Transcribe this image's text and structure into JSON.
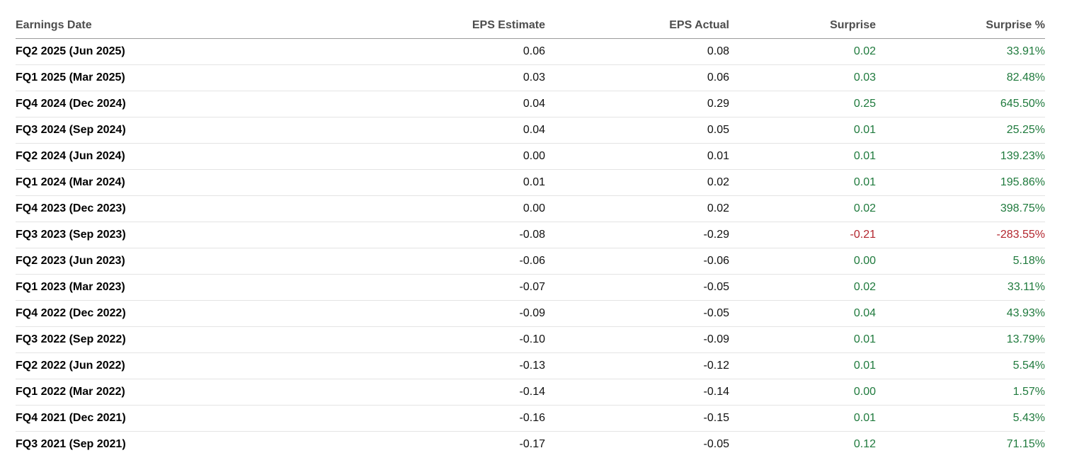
{
  "table": {
    "headers": {
      "date": "Earnings Date",
      "estimate": "EPS Estimate",
      "actual": "EPS Actual",
      "surprise": "Surprise",
      "surprise_pct": "Surprise %"
    },
    "colors": {
      "positive": "#1f7a3d",
      "negative": "#b3262e"
    },
    "rows": [
      {
        "date": "FQ2 2025 (Jun 2025)",
        "estimate": "0.06",
        "actual": "0.08",
        "surprise": "0.02",
        "surprise_pct": "33.91%",
        "direction": "positive"
      },
      {
        "date": "FQ1 2025 (Mar 2025)",
        "estimate": "0.03",
        "actual": "0.06",
        "surprise": "0.03",
        "surprise_pct": "82.48%",
        "direction": "positive"
      },
      {
        "date": "FQ4 2024 (Dec 2024)",
        "estimate": "0.04",
        "actual": "0.29",
        "surprise": "0.25",
        "surprise_pct": "645.50%",
        "direction": "positive"
      },
      {
        "date": "FQ3 2024 (Sep 2024)",
        "estimate": "0.04",
        "actual": "0.05",
        "surprise": "0.01",
        "surprise_pct": "25.25%",
        "direction": "positive"
      },
      {
        "date": "FQ2 2024 (Jun 2024)",
        "estimate": "0.00",
        "actual": "0.01",
        "surprise": "0.01",
        "surprise_pct": "139.23%",
        "direction": "positive"
      },
      {
        "date": "FQ1 2024 (Mar 2024)",
        "estimate": "0.01",
        "actual": "0.02",
        "surprise": "0.01",
        "surprise_pct": "195.86%",
        "direction": "positive"
      },
      {
        "date": "FQ4 2023 (Dec 2023)",
        "estimate": "0.00",
        "actual": "0.02",
        "surprise": "0.02",
        "surprise_pct": "398.75%",
        "direction": "positive"
      },
      {
        "date": "FQ3 2023 (Sep 2023)",
        "estimate": "-0.08",
        "actual": "-0.29",
        "surprise": "-0.21",
        "surprise_pct": "-283.55%",
        "direction": "negative"
      },
      {
        "date": "FQ2 2023 (Jun 2023)",
        "estimate": "-0.06",
        "actual": "-0.06",
        "surprise": "0.00",
        "surprise_pct": "5.18%",
        "direction": "positive"
      },
      {
        "date": "FQ1 2023 (Mar 2023)",
        "estimate": "-0.07",
        "actual": "-0.05",
        "surprise": "0.02",
        "surprise_pct": "33.11%",
        "direction": "positive"
      },
      {
        "date": "FQ4 2022 (Dec 2022)",
        "estimate": "-0.09",
        "actual": "-0.05",
        "surprise": "0.04",
        "surprise_pct": "43.93%",
        "direction": "positive"
      },
      {
        "date": "FQ3 2022 (Sep 2022)",
        "estimate": "-0.10",
        "actual": "-0.09",
        "surprise": "0.01",
        "surprise_pct": "13.79%",
        "direction": "positive"
      },
      {
        "date": "FQ2 2022 (Jun 2022)",
        "estimate": "-0.13",
        "actual": "-0.12",
        "surprise": "0.01",
        "surprise_pct": "5.54%",
        "direction": "positive"
      },
      {
        "date": "FQ1 2022 (Mar 2022)",
        "estimate": "-0.14",
        "actual": "-0.14",
        "surprise": "0.00",
        "surprise_pct": "1.57%",
        "direction": "positive"
      },
      {
        "date": "FQ4 2021 (Dec 2021)",
        "estimate": "-0.16",
        "actual": "-0.15",
        "surprise": "0.01",
        "surprise_pct": "5.43%",
        "direction": "positive"
      },
      {
        "date": "FQ3 2021 (Sep 2021)",
        "estimate": "-0.17",
        "actual": "-0.05",
        "surprise": "0.12",
        "surprise_pct": "71.15%",
        "direction": "positive"
      }
    ]
  }
}
